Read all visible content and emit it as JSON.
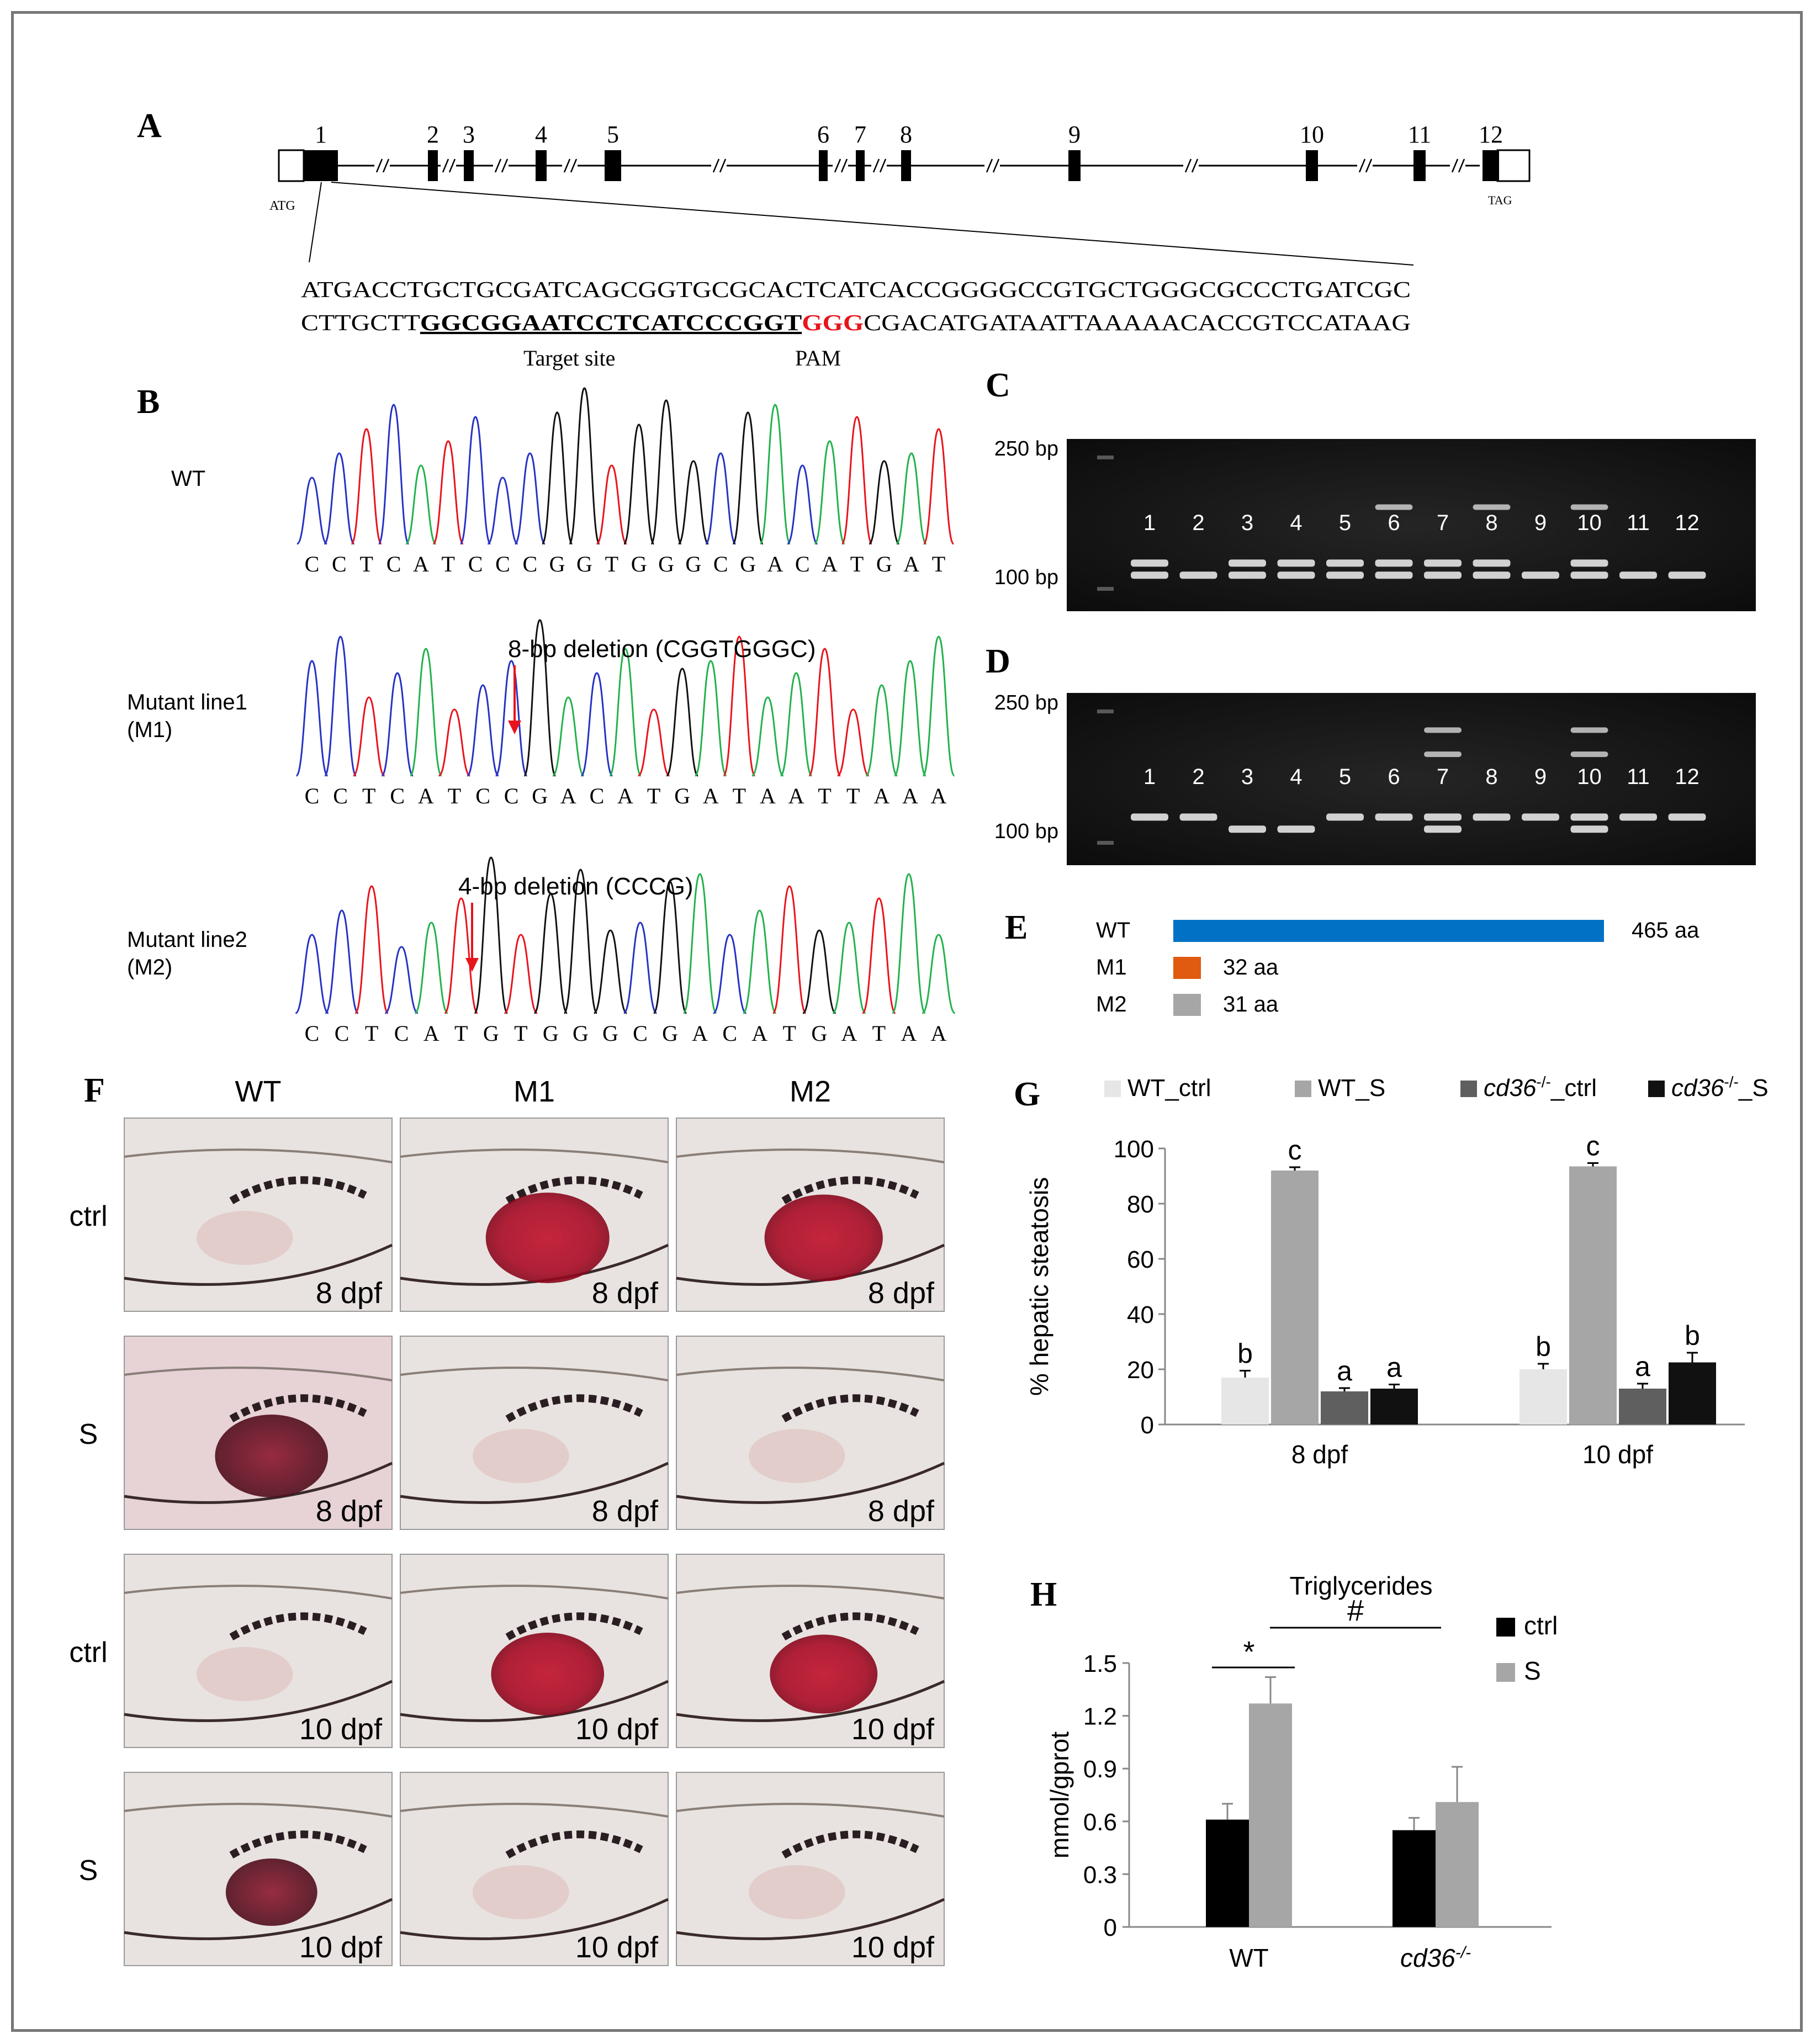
{
  "panels": {
    "A": "A",
    "B": "B",
    "C": "C",
    "D": "D",
    "E": "E",
    "F": "F",
    "G": "G",
    "H": "H"
  },
  "panelA": {
    "exon_numbers": [
      "1",
      "2",
      "3",
      "4",
      "5",
      "6",
      "7",
      "8",
      "9",
      "10",
      "11",
      "12"
    ],
    "start_codon": "ATG",
    "stop_codon": "TAG",
    "seq_line1": "ATGACCTGCTGCGATCAGCGGTGCGCACTCATCACCGGGGCCGTGCTGGGCGCCCTGATCGC",
    "seq_line2_pre": "CTTGCTT",
    "seq_line2_target": "GGCGGAATCCTCATCCCGGT",
    "seq_line2_pam": "GGG",
    "seq_line2_post": "CGACATGATAATTAAAAACACCGTCCATAAG",
    "target_label": "Target site",
    "pam_label": "PAM",
    "pam_color": "#e8141c"
  },
  "panelB": {
    "traces": [
      {
        "label_lines": [
          "WT"
        ],
        "bases": "CCTCATCCCGGTGGGCGACATGAT",
        "annotation": ""
      },
      {
        "label_lines": [
          "Mutant line1",
          "(M1)"
        ],
        "bases": "CCTCATCCGACATGATAATTAAA",
        "annotation": "8-bp deletion (CGGTGGGC)"
      },
      {
        "label_lines": [
          "Mutant line2",
          "(M2)"
        ],
        "bases": "CCTCATGTGGGCGACATGATAA",
        "annotation": "4-bp deletion (CCCG)"
      }
    ],
    "base_colors": {
      "A": "#22b24c",
      "C": "#2632c4",
      "G": "#111111",
      "T": "#e8141c"
    }
  },
  "gels": [
    {
      "panel": "C",
      "marker_top": "250 bp",
      "marker_bottom": "100 bp",
      "lanes": [
        "1",
        "2",
        "3",
        "4",
        "5",
        "6",
        "7",
        "8",
        "9",
        "10",
        "11",
        "12"
      ]
    },
    {
      "panel": "D",
      "marker_top": "250 bp",
      "marker_bottom": "100 bp",
      "lanes": [
        "1",
        "2",
        "3",
        "4",
        "5",
        "6",
        "7",
        "8",
        "9",
        "10",
        "11",
        "12"
      ]
    }
  ],
  "panelE": {
    "rows": [
      {
        "name": "WT",
        "length_label": "465 aa",
        "aa": 465,
        "color": "#0071c5"
      },
      {
        "name": "M1",
        "length_label": "32 aa",
        "aa": 32,
        "color": "#e05a0f"
      },
      {
        "name": "M2",
        "length_label": "31 aa",
        "aa": 31,
        "color": "#a6a6a6"
      }
    ]
  },
  "panelF": {
    "columns": [
      "WT",
      "M1",
      "M2"
    ],
    "rows": [
      {
        "label": "ctrl",
        "stage": "8 dpf",
        "stain": [
          0.1,
          1.0,
          0.95
        ]
      },
      {
        "label": "S",
        "stage": "8 dpf",
        "stain": [
          0.9,
          0.1,
          0.1
        ]
      },
      {
        "label": "ctrl",
        "stage": "10 dpf",
        "stain": [
          0.15,
          0.9,
          0.85
        ]
      },
      {
        "label": "S",
        "stage": "10 dpf",
        "stain": [
          0.7,
          0.0,
          0.0
        ]
      }
    ]
  },
  "chart_data": [
    {
      "panel": "G",
      "type": "bar",
      "categories": [
        "8 dpf",
        "10 dpf"
      ],
      "ylabel": "% hepatic steatosis",
      "ylim": [
        0,
        100
      ],
      "yticks": [
        0,
        20,
        40,
        60,
        80,
        100
      ],
      "legend_position": "top",
      "series": [
        {
          "name": "WT_ctrl",
          "color": "#e6e6e6",
          "values": [
            17,
            20
          ],
          "errors": [
            2.5,
            2
          ],
          "letters": [
            "b",
            "b"
          ]
        },
        {
          "name": "WT_S",
          "color": "#a6a6a6",
          "values": [
            92,
            93.5
          ],
          "errors": [
            1.2,
            1.2
          ],
          "letters": [
            "c",
            "c"
          ]
        },
        {
          "name": "cd36-/-_ctrl",
          "color": "#5f5f5f",
          "values": [
            12,
            13
          ],
          "errors": [
            1.2,
            1.8
          ],
          "letters": [
            "a",
            "a"
          ]
        },
        {
          "name": "cd36-/-_S",
          "color": "#111111",
          "values": [
            13,
            22.5
          ],
          "errors": [
            1.5,
            3.5
          ],
          "letters": [
            "a",
            "b"
          ]
        }
      ]
    },
    {
      "panel": "H",
      "type": "bar",
      "title": "Triglycerides",
      "categories": [
        "WT",
        "cd36-/-"
      ],
      "ylabel": "mmol/gprot",
      "ylim": [
        0,
        1.5
      ],
      "yticks": [
        "0",
        "0.3",
        "0.6",
        "0.9",
        "1.2",
        "1.5"
      ],
      "legend_position": "top-right",
      "series": [
        {
          "name": "ctrl",
          "color": "#000000",
          "values": [
            0.61,
            0.55
          ],
          "errors": [
            0.09,
            0.07
          ]
        },
        {
          "name": "S",
          "color": "#a6a6a6",
          "values": [
            1.27,
            0.71
          ],
          "errors": [
            0.15,
            0.2
          ]
        }
      ],
      "annotations": [
        "*",
        "#"
      ]
    }
  ]
}
